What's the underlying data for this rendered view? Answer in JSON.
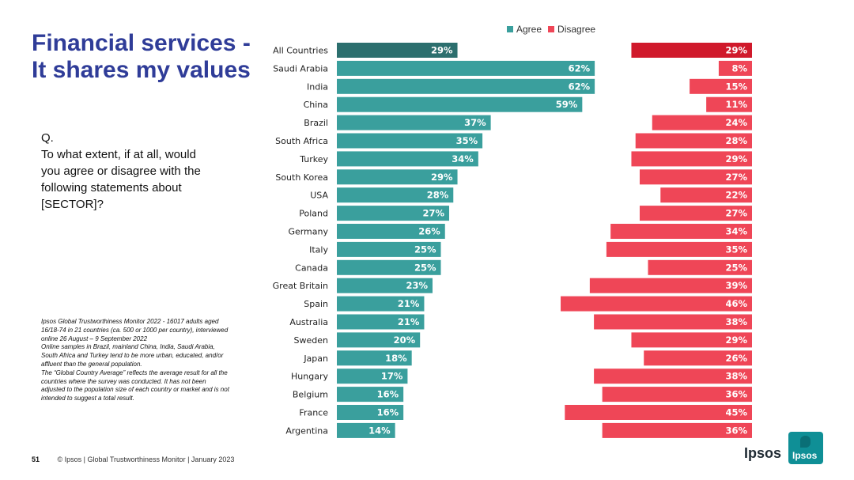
{
  "slide": {
    "title_line1": "Financial services -",
    "title_line2": "It shares my values",
    "question_lines": [
      "Q.",
      "To what extent, if at all, would",
      "you agree or disagree with the",
      "following statements about",
      "[SECTOR]?"
    ],
    "notes_lines": [
      "Ipsos Global Trustworthiness Monitor 2022 - 16017 adults aged",
      "16/18-74 in 21 countries (ca. 500 or 1000 per country), interviewed",
      "online 26 August – 9 September 2022",
      "Online samples in Brazil, mainland China, India, Saudi Arabia,",
      "South Africa and Turkey tend to be more urban, educated, and/or",
      "affluent than the general population.",
      "The “Global Country Average” reflects the average result for all the",
      "countries where the survey was conducted. It has not been",
      "adjusted to the population size of each country or market and is not",
      "intended to suggest a total result."
    ],
    "page_number": "51",
    "footer_text": "© Ipsos | Global Trustworthiness Monitor | January 2023",
    "brand_word": "Ipsos",
    "logo_text": "Ipsos"
  },
  "colors": {
    "agree": "#3a9f9d",
    "agree_highlight": "#2c6f6e",
    "disagree": "#ef4657",
    "disagree_highlight": "#d0192b",
    "title": "#2f3c98"
  },
  "chart_data": {
    "type": "bar",
    "orientation": "horizontal-diverging",
    "legend": [
      "Agree",
      "Disagree"
    ],
    "legend_position": "top",
    "categories": [
      "All Countries",
      "Saudi Arabia",
      "India",
      "China",
      "Brazil",
      "South Africa",
      "Turkey",
      "South Korea",
      "USA",
      "Poland",
      "Germany",
      "Italy",
      "Canada",
      "Great Britain",
      "Spain",
      "Australia",
      "Sweden",
      "Japan",
      "Hungary",
      "Belgium",
      "France",
      "Argentina"
    ],
    "series": [
      {
        "name": "Agree",
        "values": [
          29,
          62,
          62,
          59,
          37,
          35,
          34,
          29,
          28,
          27,
          26,
          25,
          25,
          23,
          21,
          21,
          20,
          18,
          17,
          16,
          16,
          14
        ]
      },
      {
        "name": "Disagree",
        "values": [
          29,
          8,
          15,
          11,
          24,
          28,
          29,
          27,
          22,
          27,
          34,
          35,
          25,
          39,
          46,
          38,
          29,
          26,
          38,
          36,
          45,
          36
        ]
      }
    ],
    "value_format": "{v}%",
    "highlight_category": "All Countries"
  }
}
